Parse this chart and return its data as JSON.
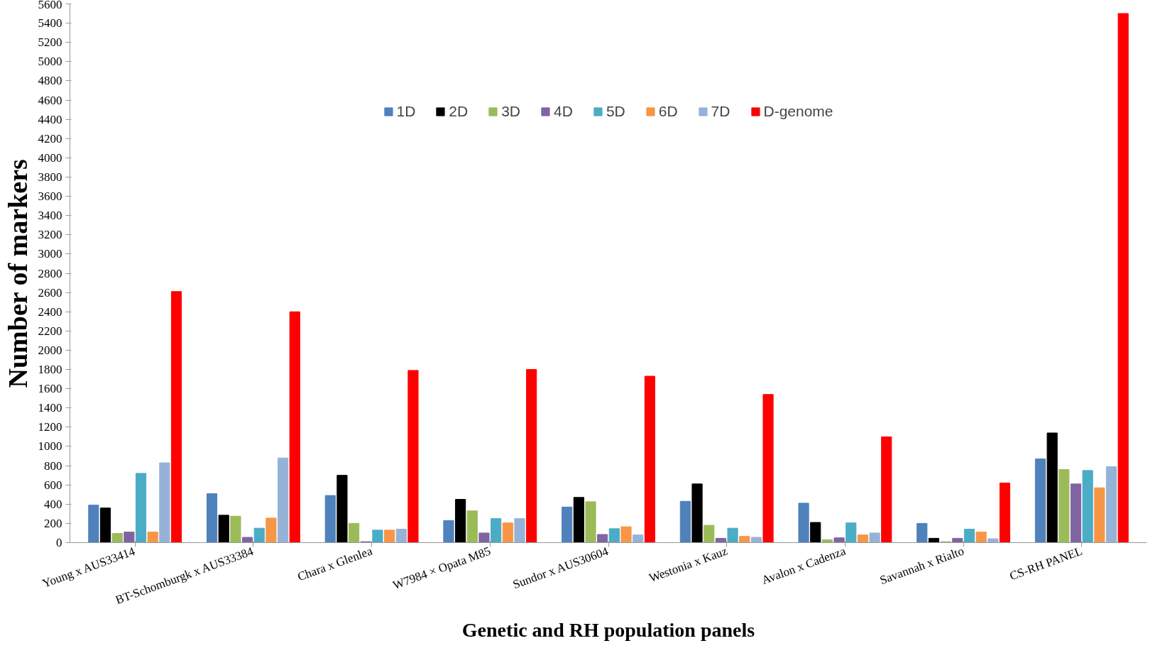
{
  "chart_data": {
    "type": "bar",
    "xlabel": "Genetic and RH population panels",
    "ylabel": "Number of markers",
    "categories": [
      "Young x AUS33414",
      "BT-Schomburgk x AUS33384",
      "Chara x Glenlea",
      "W7984 × Opata M85",
      "Sundor x AUS30604",
      "Westonia x Kauz",
      "Avalon x Cadenza",
      "Savannah x Rialto",
      "CS-RH PANEL"
    ],
    "series": [
      {
        "name": "1D",
        "color": "#4f81bd",
        "values": [
          390,
          510,
          490,
          230,
          370,
          430,
          410,
          200,
          870
        ]
      },
      {
        "name": "2D",
        "color": "#000000",
        "values": [
          360,
          285,
          700,
          450,
          470,
          610,
          210,
          45,
          1140
        ]
      },
      {
        "name": "3D",
        "color": "#9bbb59",
        "values": [
          95,
          275,
          200,
          330,
          425,
          180,
          30,
          10,
          760
        ]
      },
      {
        "name": "4D",
        "color": "#8064a2",
        "values": [
          110,
          55,
          10,
          100,
          85,
          45,
          50,
          45,
          610
        ]
      },
      {
        "name": "5D",
        "color": "#4bacc6",
        "values": [
          720,
          150,
          130,
          250,
          145,
          150,
          205,
          140,
          750
        ]
      },
      {
        "name": "6D",
        "color": "#f79646",
        "values": [
          110,
          255,
          130,
          205,
          165,
          65,
          80,
          110,
          570
        ]
      },
      {
        "name": "7D",
        "color": "#95b3d7",
        "values": [
          830,
          880,
          140,
          250,
          80,
          55,
          100,
          40,
          790
        ]
      },
      {
        "name": "D-genome",
        "color": "#ff0000",
        "values": [
          2610,
          2400,
          1790,
          1800,
          1730,
          1540,
          1100,
          620,
          5500
        ]
      }
    ],
    "ylim": [
      0,
      5600
    ],
    "yticks": [
      0,
      200,
      400,
      600,
      800,
      1000,
      1200,
      1400,
      1600,
      1800,
      2000,
      2200,
      2400,
      2600,
      2800,
      3000,
      3200,
      3400,
      3600,
      3800,
      4000,
      4200,
      4400,
      4600,
      4800,
      5000,
      5200,
      5400,
      5600
    ],
    "grid": false,
    "legend": "top"
  }
}
